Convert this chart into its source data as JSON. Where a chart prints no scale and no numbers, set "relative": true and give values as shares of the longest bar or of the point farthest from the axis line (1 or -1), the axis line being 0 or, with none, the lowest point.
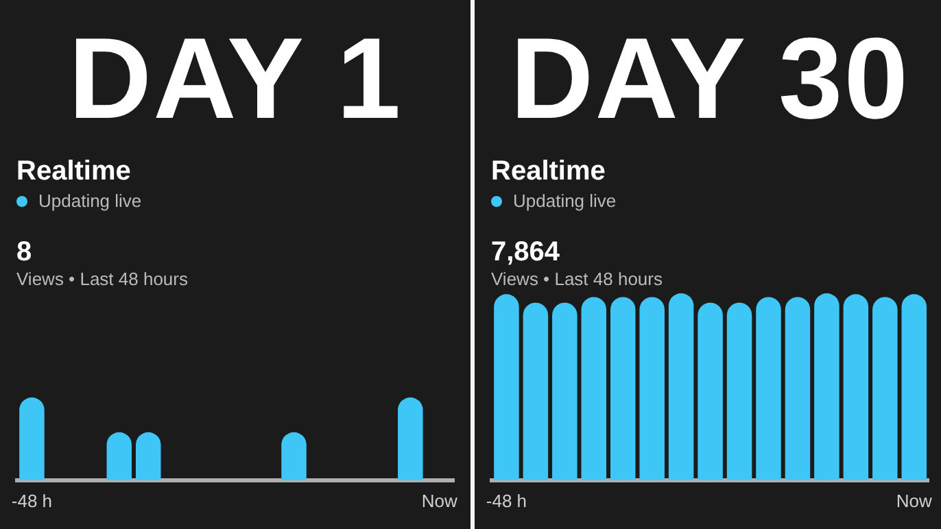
{
  "chart_data": [
    {
      "type": "bar",
      "title": "DAY 1",
      "subtitle": "Realtime",
      "annotations": [
        "Updating live",
        "8",
        "Views • Last 48 hours"
      ],
      "relative": true,
      "color": "#3ec6f7",
      "categories": [
        "-48 h",
        null,
        null,
        null,
        null,
        null,
        null,
        null,
        null,
        null,
        null,
        null,
        null,
        null,
        "Now"
      ],
      "values": [
        1,
        0,
        0,
        0.58,
        0.58,
        0,
        0,
        0,
        0,
        0.58,
        0,
        0,
        0,
        1,
        0
      ]
    },
    {
      "type": "bar",
      "title": "DAY 30",
      "subtitle": "Realtime",
      "annotations": [
        "Updating live",
        "7,864",
        "Views • Last 48 hours"
      ],
      "relative": true,
      "color": "#3ec6f7",
      "categories": [
        "-48 h",
        null,
        null,
        null,
        null,
        null,
        null,
        null,
        null,
        null,
        null,
        null,
        null,
        null,
        "Now"
      ],
      "values": [
        0.995,
        0.95,
        0.95,
        0.98,
        0.98,
        0.98,
        1,
        0.95,
        0.95,
        0.98,
        0.98,
        1,
        0.995,
        0.98,
        0.995
      ]
    }
  ]
}
